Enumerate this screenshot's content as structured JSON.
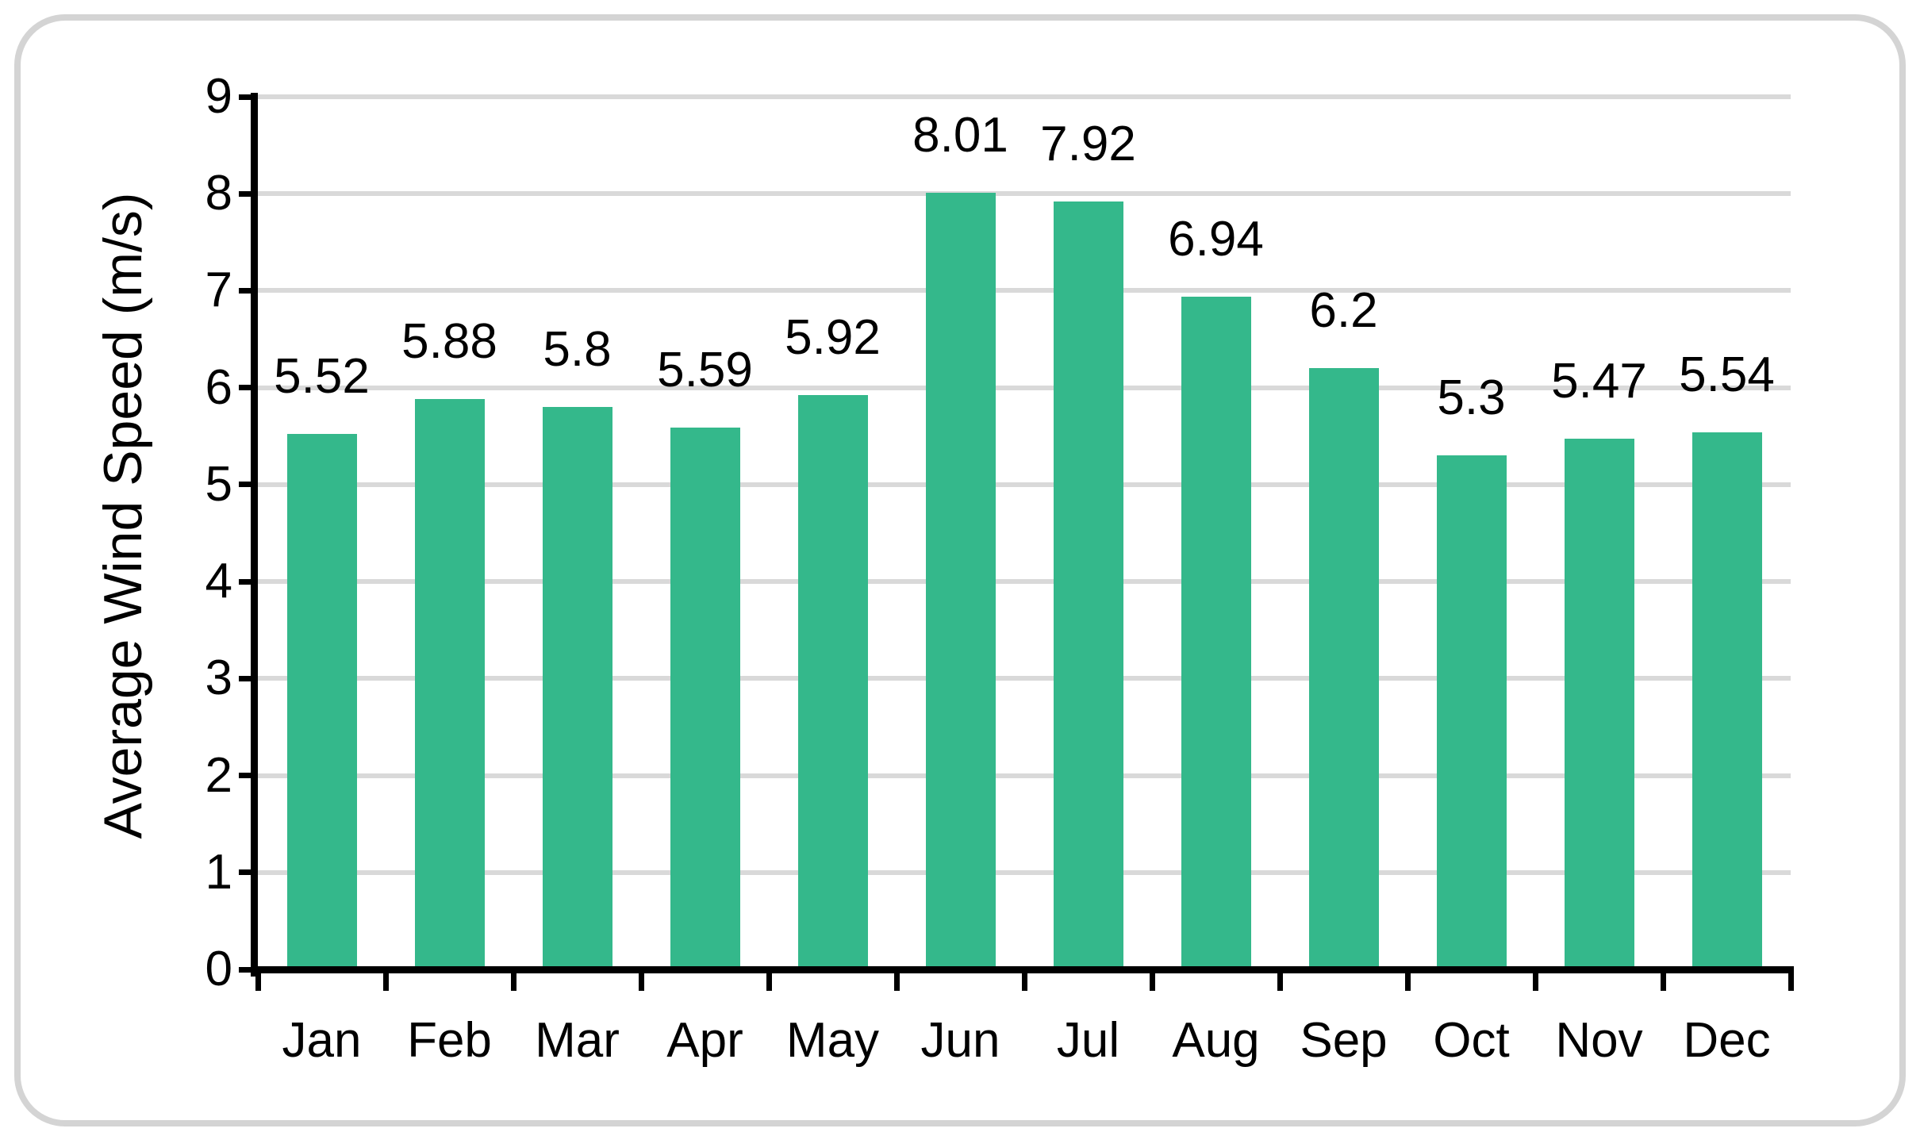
{
  "chart_data": {
    "type": "bar",
    "categories": [
      "Jan",
      "Feb",
      "Mar",
      "Apr",
      "May",
      "Jun",
      "Jul",
      "Aug",
      "Sep",
      "Oct",
      "Nov",
      "Dec"
    ],
    "values": [
      5.52,
      5.88,
      5.8,
      5.59,
      5.92,
      8.01,
      7.92,
      6.94,
      6.2,
      5.3,
      5.47,
      5.54
    ],
    "value_labels": [
      "5.52",
      "5.88",
      "5.8",
      "5.59",
      "5.92",
      "8.01",
      "7.92",
      "6.94",
      "6.2",
      "5.3",
      "5.47",
      "5.54"
    ],
    "title": "",
    "xlabel": "",
    "ylabel": "Average Wind Speed (m/s)",
    "ylim": [
      0,
      9
    ],
    "ytick_step": 1,
    "ytick_labels": [
      "0",
      "1",
      "2",
      "3",
      "4",
      "5",
      "6",
      "7",
      "8",
      "9"
    ],
    "grid": true,
    "legend": null,
    "bar_color": "#34b88b",
    "gridline_color": "#d9d9d9",
    "axis_color": "#000000",
    "label_color": "#000000",
    "card_border_color": "#d4d4d4"
  }
}
